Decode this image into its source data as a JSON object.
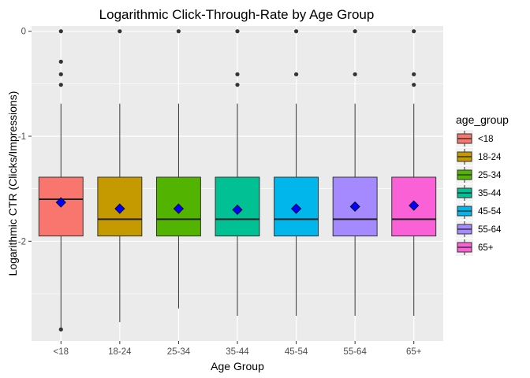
{
  "chart_data": {
    "type": "box",
    "title": "Logarithmic Click-Through-Rate by Age Group",
    "xlabel": "Age Group",
    "ylabel": "Logarithmic CTR (Clicks/Impressions)",
    "categories": [
      "<18",
      "18-24",
      "25-34",
      "35-44",
      "45-54",
      "55-64",
      "65+"
    ],
    "ylim": [
      -2.95,
      0.05
    ],
    "yticks": [
      0,
      -1,
      -2
    ],
    "ytick_labels": [
      "0",
      "-1",
      "-2"
    ],
    "grid": true,
    "legend": {
      "title": "age_group",
      "position": "right"
    },
    "colors": [
      "#F8766D",
      "#C49A00",
      "#53B400",
      "#00C094",
      "#00B6EB",
      "#A58AFF",
      "#FB61D7"
    ],
    "mean_marker_color": "#0000FF",
    "series": [
      {
        "name": "<18",
        "whisker_low": -2.84,
        "q1": -1.95,
        "median": -1.6,
        "q3": -1.39,
        "whisker_high": -0.69,
        "mean": -1.63,
        "outliers": [
          0,
          -0.29,
          -0.41,
          -0.51,
          -2.84
        ]
      },
      {
        "name": "18-24",
        "whisker_low": -2.77,
        "q1": -1.95,
        "median": -1.79,
        "q3": -1.39,
        "whisker_high": -0.69,
        "mean": -1.69,
        "outliers": [
          0
        ]
      },
      {
        "name": "25-34",
        "whisker_low": -2.64,
        "q1": -1.95,
        "median": -1.79,
        "q3": -1.39,
        "whisker_high": -0.69,
        "mean": -1.69,
        "outliers": [
          0
        ]
      },
      {
        "name": "35-44",
        "whisker_low": -2.71,
        "q1": -1.95,
        "median": -1.79,
        "q3": -1.39,
        "whisker_high": -0.69,
        "mean": -1.7,
        "outliers": [
          0,
          -0.41,
          -0.51
        ]
      },
      {
        "name": "45-54",
        "whisker_low": -2.71,
        "q1": -1.95,
        "median": -1.79,
        "q3": -1.39,
        "whisker_high": -0.69,
        "mean": -1.69,
        "outliers": [
          0,
          -0.41
        ]
      },
      {
        "name": "55-64",
        "whisker_low": -2.71,
        "q1": -1.95,
        "median": -1.79,
        "q3": -1.39,
        "whisker_high": -0.69,
        "mean": -1.67,
        "outliers": [
          0,
          -0.41
        ]
      },
      {
        "name": "65+",
        "whisker_low": -2.71,
        "q1": -1.95,
        "median": -1.79,
        "q3": -1.39,
        "whisker_high": -0.69,
        "mean": -1.66,
        "outliers": [
          0,
          -0.41,
          -0.51
        ]
      }
    ]
  }
}
